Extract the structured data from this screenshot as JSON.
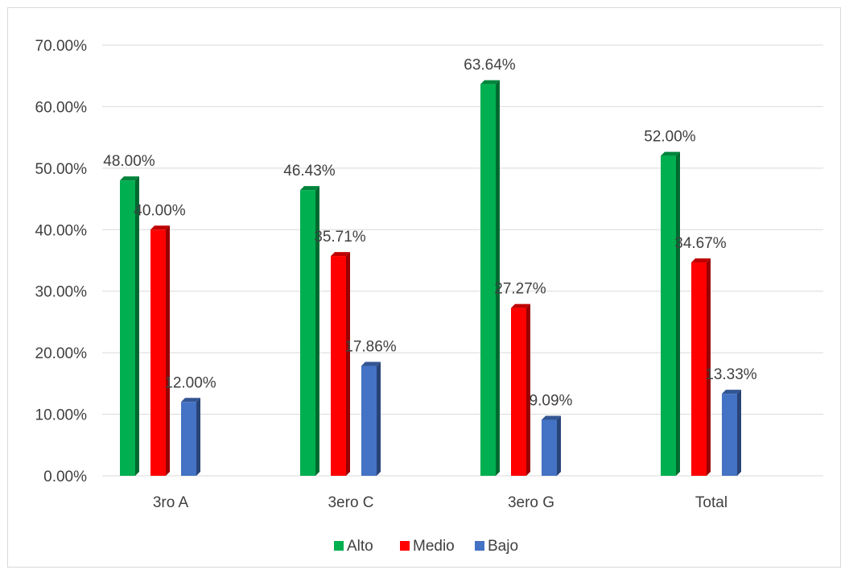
{
  "chart_data": {
    "type": "bar",
    "categories": [
      "3ro A",
      "3ero C",
      "3ero G",
      "Total"
    ],
    "series": [
      {
        "name": "Alto",
        "color": "#00b050",
        "values": [
          48.0,
          46.43,
          63.64,
          52.0
        ],
        "labels": [
          "48.00%",
          "46.43%",
          "63.64%",
          "52.00%"
        ]
      },
      {
        "name": "Medio",
        "color": "#ff0000",
        "values": [
          40.0,
          35.71,
          27.27,
          34.67
        ],
        "labels": [
          "40.00%",
          "35.71%",
          "27.27%",
          "34.67%"
        ]
      },
      {
        "name": "Bajo",
        "color": "#4472c4",
        "values": [
          12.0,
          17.86,
          9.09,
          13.33
        ],
        "labels": [
          "12.00%",
          "17.86%",
          "9.09%",
          "13.33%"
        ]
      }
    ],
    "yticks": [
      "0.00%",
      "10.00%",
      "20.00%",
      "30.00%",
      "40.00%",
      "50.00%",
      "60.00%",
      "70.00%"
    ],
    "ylim": [
      0,
      70
    ],
    "grid": true,
    "legend": "bottom",
    "title": "",
    "xlabel": "",
    "ylabel": ""
  }
}
